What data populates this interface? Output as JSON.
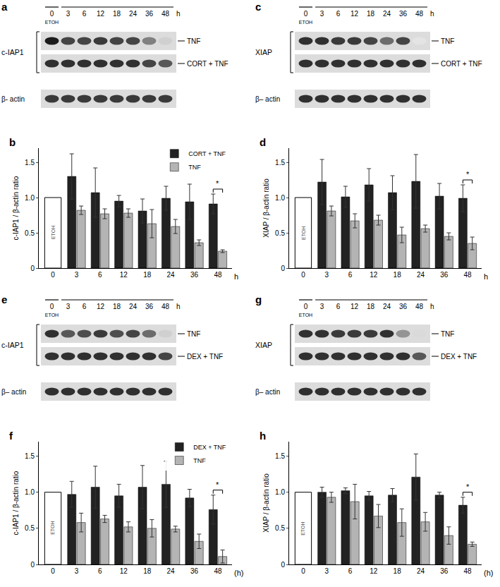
{
  "blots": [
    {
      "panel": "a",
      "lanes": [
        "0",
        "3",
        "6",
        "12",
        "18",
        "24",
        "36",
        "48"
      ],
      "control_label": "ETOH",
      "unit": "h",
      "protein": "c-IAP1",
      "protein_rows": [
        {
          "label": "TNF",
          "bands": [
            1,
            0.8,
            0.8,
            0.85,
            0.8,
            0.8,
            0.5,
            0.1
          ]
        },
        {
          "label": "CORT + TNF",
          "bands": [
            0.9,
            0.9,
            0.9,
            0.9,
            0.9,
            0.9,
            0.8,
            0.7
          ]
        }
      ],
      "loading": {
        "label": "β- actin",
        "bands": [
          0.85,
          0.85,
          0.85,
          0.85,
          0.85,
          0.85,
          0.85,
          0.85
        ]
      }
    },
    {
      "panel": "c",
      "lanes": [
        "0",
        "3",
        "6",
        "12",
        "18",
        "24",
        "36",
        "48"
      ],
      "control_label": "ETOH",
      "unit": "h",
      "protein": "XIAP",
      "protein_rows": [
        {
          "label": "TNF",
          "bands": [
            0.9,
            0.9,
            0.85,
            0.85,
            0.8,
            0.6,
            0.8,
            0
          ]
        },
        {
          "label": "CORT + TNF",
          "bands": [
            0.9,
            0.9,
            0.9,
            0.9,
            0.9,
            0.9,
            0.9,
            0.9
          ]
        }
      ],
      "loading": {
        "label": "β– actin",
        "bands": [
          0.9,
          0.9,
          0.9,
          0.9,
          0.9,
          0.9,
          0.9,
          0.9
        ]
      }
    },
    {
      "panel": "e",
      "lanes": [
        "0",
        "3",
        "6",
        "12",
        "18",
        "24",
        "36",
        "48"
      ],
      "control_label": "ETOH",
      "unit": "h",
      "protein": "c-IAP1",
      "protein_rows": [
        {
          "label": "TNF",
          "bands": [
            0.9,
            0.7,
            0.75,
            0.85,
            0.75,
            0.8,
            0.6,
            0.1
          ]
        },
        {
          "label": "DEX + TNF",
          "bands": [
            0.9,
            0.9,
            0.9,
            0.9,
            0.9,
            0.9,
            0.9,
            0.8
          ]
        }
      ],
      "loading": {
        "label": "β– actin",
        "bands": [
          0.9,
          0.9,
          0.9,
          0.9,
          0.9,
          0.9,
          0.9,
          0.9
        ]
      }
    },
    {
      "panel": "g",
      "lanes": [
        "0",
        "3",
        "6",
        "12",
        "18",
        "24",
        "36",
        "48"
      ],
      "control_label": "ETOH",
      "unit": "h",
      "protein": "XIAP",
      "protein_rows": [
        {
          "label": "TNF",
          "bands": [
            0.9,
            0.9,
            0.85,
            0.85,
            0.85,
            0.9,
            0.4,
            0.05
          ]
        },
        {
          "label": "DEX + TNF",
          "bands": [
            0.9,
            0.9,
            0.9,
            0.9,
            0.9,
            0.9,
            0.9,
            0.7
          ]
        }
      ],
      "loading": {
        "label": "β– actin",
        "bands": [
          0.9,
          0.9,
          0.9,
          0.9,
          0.9,
          0.9,
          0.9,
          0.9
        ]
      }
    }
  ],
  "chart_data": [
    {
      "panel": "b",
      "type": "bar",
      "y_label": "c-IAP1 / β-actin ratio",
      "x_label": "h",
      "categories": [
        "0",
        "3",
        "6",
        "12",
        "18",
        "24",
        "36",
        "48"
      ],
      "control": {
        "category": "0",
        "value": 1,
        "label": "ETOH",
        "color": "#ffffff"
      },
      "series": [
        {
          "name": "CORT + TNF",
          "color": "#222222",
          "values": [
            null,
            1.3,
            1.07,
            0.95,
            0.81,
            0.99,
            0.94,
            0.91
          ],
          "errors": [
            null,
            0.32,
            0.35,
            0.08,
            0.17,
            0.17,
            0.25,
            0.14
          ]
        },
        {
          "name": "TNF",
          "color": "#b4b4b4",
          "values": [
            null,
            0.82,
            0.77,
            0.78,
            0.63,
            0.59,
            0.36,
            0.24
          ],
          "errors": [
            null,
            0.06,
            0.07,
            0.06,
            0.2,
            0.1,
            0.04,
            0.02
          ]
        }
      ],
      "significance": [
        {
          "category": "48",
          "label": "*"
        }
      ],
      "ylim": [
        0,
        1.7
      ],
      "yticks": [
        0,
        0.5,
        {
          "value": 1,
          "label": "1.0"
        },
        1.5
      ],
      "grid": false,
      "legend": "upper right"
    },
    {
      "panel": "d",
      "type": "bar",
      "y_label": "XIAP / β-actin ratio",
      "x_label": "h",
      "categories": [
        "0",
        "3",
        "6",
        "12",
        "18",
        "24",
        "36",
        "48"
      ],
      "control": {
        "category": "0",
        "value": 1,
        "label": "ETOH",
        "color": "#ffffff"
      },
      "series": [
        {
          "name": "CORT + TNF",
          "color": "#222222",
          "values": [
            null,
            1.22,
            1.01,
            1.18,
            1.07,
            1.23,
            1.02,
            0.99
          ],
          "errors": [
            null,
            0.32,
            0.15,
            0.23,
            0.24,
            0.38,
            0.18,
            0.19
          ]
        },
        {
          "name": "TNF",
          "color": "#b4b4b4",
          "values": [
            null,
            0.81,
            0.67,
            0.68,
            0.47,
            0.56,
            0.45,
            0.35
          ],
          "errors": [
            null,
            0.07,
            0.1,
            0.07,
            0.11,
            0.05,
            0.05,
            0.09
          ]
        }
      ],
      "significance": [
        {
          "category": "48",
          "label": "*"
        }
      ],
      "ylim": [
        0,
        1.7
      ],
      "yticks": [
        0,
        0.5,
        {
          "value": 1,
          "label": "1.0"
        },
        1.5
      ],
      "grid": false
    },
    {
      "panel": "f",
      "type": "bar",
      "y_label": "c-IAP1 / β-actin ratio",
      "x_label": "(h)",
      "categories": [
        "0",
        "3",
        "6",
        "12",
        "18",
        "24",
        "36",
        "48"
      ],
      "control": {
        "category": "0",
        "value": 1,
        "label": "ETOH",
        "color": "#ffffff"
      },
      "series": [
        {
          "name": "DEX + TNF",
          "color": "#222222",
          "values": [
            null,
            0.97,
            1.07,
            0.95,
            1.07,
            1.11,
            0.92,
            0.76
          ],
          "errors": [
            null,
            0.18,
            0.29,
            0.16,
            0.3,
            0.32,
            0.12,
            0.2
          ]
        },
        {
          "name": "TNF",
          "color": "#b4b4b4",
          "values": [
            null,
            0.58,
            0.63,
            0.52,
            0.5,
            0.49,
            0.32,
            0.11
          ],
          "errors": [
            null,
            0.13,
            0.05,
            0.07,
            0.12,
            0.04,
            0.1,
            0.09
          ]
        }
      ],
      "significance": [
        {
          "category": "48",
          "label": "*"
        }
      ],
      "ylim": [
        0,
        1.7
      ],
      "yticks": [
        0,
        0.5,
        {
          "value": 1,
          "label": "1.0"
        },
        1.5
      ],
      "grid": false,
      "legend": "upper right"
    },
    {
      "panel": "h",
      "type": "bar",
      "y_label": "XIAP / β-actin ratio",
      "x_label": "(h)",
      "categories": [
        "0",
        "3",
        "6",
        "12",
        "18",
        "24",
        "36",
        "48"
      ],
      "control": {
        "category": "0",
        "value": 1,
        "label": "ETOH",
        "color": "#ffffff"
      },
      "series": [
        {
          "name": "DEX + TNF",
          "color": "#222222",
          "values": [
            null,
            1.0,
            1.02,
            0.95,
            0.96,
            1.21,
            0.96,
            0.82
          ],
          "errors": [
            null,
            0.07,
            0.04,
            0.06,
            0.09,
            0.32,
            0.04,
            0.11
          ]
        },
        {
          "name": "TNF",
          "color": "#b4b4b4",
          "values": [
            null,
            0.93,
            0.87,
            0.67,
            0.58,
            0.59,
            0.4,
            0.28
          ],
          "errors": [
            null,
            0.07,
            0.24,
            0.16,
            0.19,
            0.13,
            0.12,
            0.03
          ]
        }
      ],
      "significance": [
        {
          "category": "48",
          "label": "*"
        }
      ],
      "ylim": [
        0,
        1.7
      ],
      "yticks": [
        0,
        0.5,
        {
          "value": 1,
          "label": "1.0"
        },
        1.5
      ],
      "grid": false
    }
  ]
}
